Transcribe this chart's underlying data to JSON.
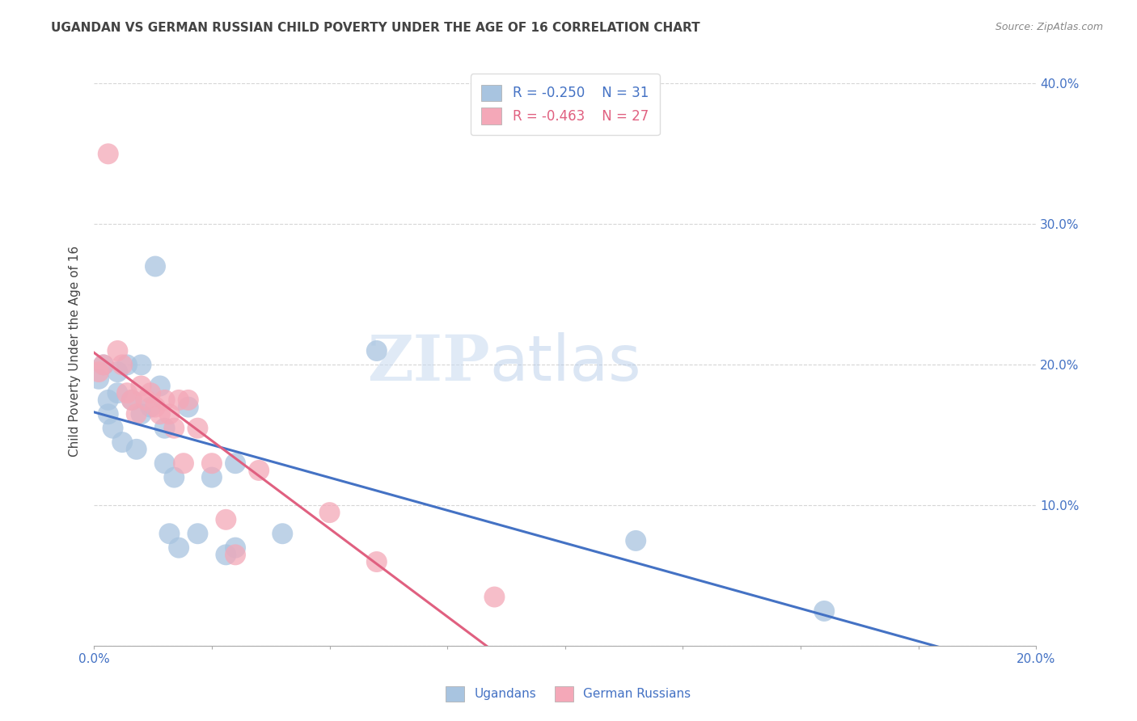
{
  "title": "UGANDAN VS GERMAN RUSSIAN CHILD POVERTY UNDER THE AGE OF 16 CORRELATION CHART",
  "source": "Source: ZipAtlas.com",
  "ylabel": "Child Poverty Under the Age of 16",
  "xlim": [
    0.0,
    0.2
  ],
  "ylim": [
    0.0,
    0.42
  ],
  "x_ticks": [
    0.0,
    0.025,
    0.05,
    0.075,
    0.1,
    0.125,
    0.15,
    0.175,
    0.2
  ],
  "y_ticks": [
    0.0,
    0.1,
    0.2,
    0.3,
    0.4
  ],
  "y_tick_labels_right": [
    "",
    "10.0%",
    "20.0%",
    "30.0%",
    "40.0%"
  ],
  "ugandan_R": -0.25,
  "ugandan_N": 31,
  "german_russian_R": -0.463,
  "german_russian_N": 27,
  "ugandan_color": "#a8c4e0",
  "german_russian_color": "#f4a8b8",
  "ugandan_line_color": "#4472C4",
  "german_russian_line_color": "#E06080",
  "ugandan_x": [
    0.001,
    0.002,
    0.003,
    0.003,
    0.004,
    0.005,
    0.005,
    0.006,
    0.007,
    0.008,
    0.009,
    0.01,
    0.01,
    0.012,
    0.013,
    0.014,
    0.015,
    0.015,
    0.016,
    0.017,
    0.018,
    0.02,
    0.022,
    0.025,
    0.028,
    0.03,
    0.03,
    0.04,
    0.06,
    0.115,
    0.155
  ],
  "ugandan_y": [
    0.19,
    0.2,
    0.165,
    0.175,
    0.155,
    0.195,
    0.18,
    0.145,
    0.2,
    0.175,
    0.14,
    0.165,
    0.2,
    0.17,
    0.27,
    0.185,
    0.155,
    0.13,
    0.08,
    0.12,
    0.07,
    0.17,
    0.08,
    0.12,
    0.065,
    0.13,
    0.07,
    0.08,
    0.21,
    0.075,
    0.025
  ],
  "german_russian_x": [
    0.001,
    0.002,
    0.003,
    0.005,
    0.006,
    0.007,
    0.008,
    0.009,
    0.01,
    0.011,
    0.012,
    0.013,
    0.014,
    0.015,
    0.016,
    0.017,
    0.018,
    0.019,
    0.02,
    0.022,
    0.025,
    0.028,
    0.03,
    0.035,
    0.05,
    0.06,
    0.085
  ],
  "german_russian_y": [
    0.195,
    0.2,
    0.35,
    0.21,
    0.2,
    0.18,
    0.175,
    0.165,
    0.185,
    0.175,
    0.18,
    0.17,
    0.165,
    0.175,
    0.165,
    0.155,
    0.175,
    0.13,
    0.175,
    0.155,
    0.13,
    0.09,
    0.065,
    0.125,
    0.095,
    0.06,
    0.035
  ],
  "watermark_zip": "ZIP",
  "watermark_atlas": "atlas",
  "background_color": "#ffffff",
  "grid_color": "#cccccc",
  "title_color": "#444444",
  "tick_label_color": "#4472C4"
}
